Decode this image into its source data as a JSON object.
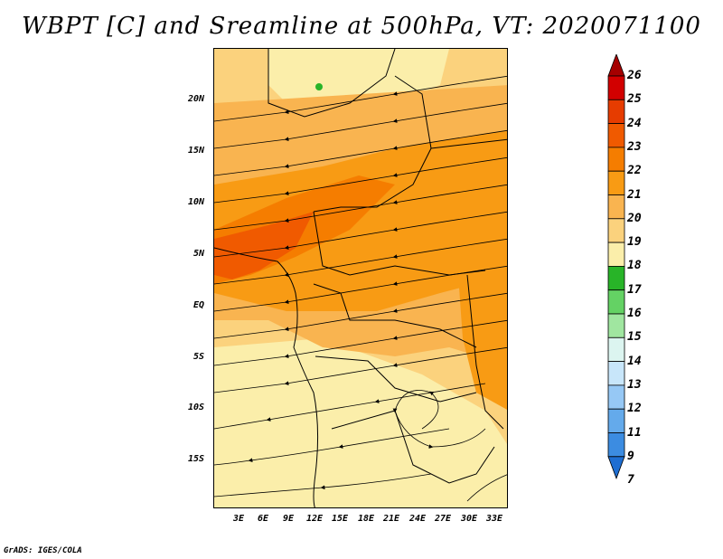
{
  "title": "WBPT [C] and Sreamline at 500hPa, VT: 2020071100",
  "credit": "GrADS: IGES/COLA",
  "map": {
    "lat_labels": [
      "20N",
      "15N",
      "10N",
      "5N",
      "EQ",
      "5S",
      "10S",
      "15S"
    ],
    "lon_labels": [
      "3E",
      "6E",
      "9E",
      "12E",
      "15E",
      "18E",
      "21E",
      "24E",
      "27E",
      "30E",
      "33E"
    ]
  },
  "legend": {
    "labels": [
      "26",
      "25",
      "24",
      "23",
      "22",
      "21",
      "20",
      "19",
      "18",
      "17",
      "16",
      "15",
      "14",
      "13",
      "12",
      "11",
      "9",
      "7"
    ],
    "colors": [
      "#a50000",
      "#d20000",
      "#e63c00",
      "#f05a00",
      "#f57d00",
      "#f89b14",
      "#f9b450",
      "#fbd27d",
      "#fbeeaa",
      "#28b428",
      "#64d264",
      "#a0e6a0",
      "#dcf5f0",
      "#c8e6fa",
      "#96c8f5",
      "#64aaeb",
      "#3c8ce1",
      "#1e6ed2"
    ]
  }
}
